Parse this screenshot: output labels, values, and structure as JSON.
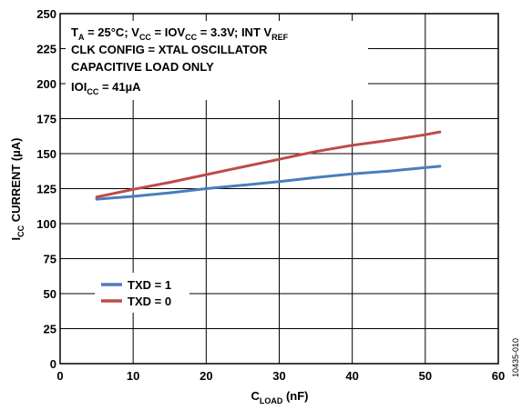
{
  "chart_data": {
    "type": "line",
    "xlabel": {
      "main": "C",
      "sub": "LOAD",
      "tail": " (nF)"
    },
    "ylabel": {
      "main": "I",
      "sub": "CC",
      "tail": " CURRENT (µA)"
    },
    "xlim": [
      0,
      60
    ],
    "ylim": [
      0,
      250
    ],
    "x_ticks": [
      "0",
      "10",
      "20",
      "30",
      "40",
      "50",
      "60"
    ],
    "y_ticks": [
      "0",
      "25",
      "50",
      "75",
      "100",
      "125",
      "150",
      "175",
      "200",
      "225",
      "250"
    ],
    "grid": true,
    "annotations": {
      "line1": {
        "a": "T",
        "a_sub": "A",
        "b": " = 25°C; V",
        "b_sub": "CC",
        "c": " = IOV",
        "c_sub": "CC",
        "d": " = 3.3V; INT V",
        "d_sub": "REF"
      },
      "line2": "CLK CONFIG = XTAL OSCILLATOR",
      "line3": "CAPACITIVE LOAD ONLY",
      "line4": {
        "a": "IOI",
        "a_sub": "CC",
        "b": " = 41µA"
      }
    },
    "legend_position": "lower-left",
    "series": [
      {
        "name": "TXD = 1",
        "color": "#4a7ebb",
        "x": [
          5,
          10,
          15,
          20,
          25,
          30,
          35,
          40,
          45,
          50,
          52
        ],
        "y": [
          117.5,
          119.5,
          122,
          125,
          127.5,
          130,
          133,
          135.5,
          137.5,
          140,
          141
        ]
      },
      {
        "name": "TXD = 0",
        "color": "#be4b48",
        "x": [
          5,
          10,
          15,
          20,
          25,
          30,
          35,
          40,
          45,
          50,
          52
        ],
        "y": [
          119,
          124.5,
          129.5,
          135,
          140.5,
          146,
          151.5,
          156,
          159.5,
          163.5,
          165.5
        ]
      }
    ]
  },
  "figure_id": "10435-010"
}
